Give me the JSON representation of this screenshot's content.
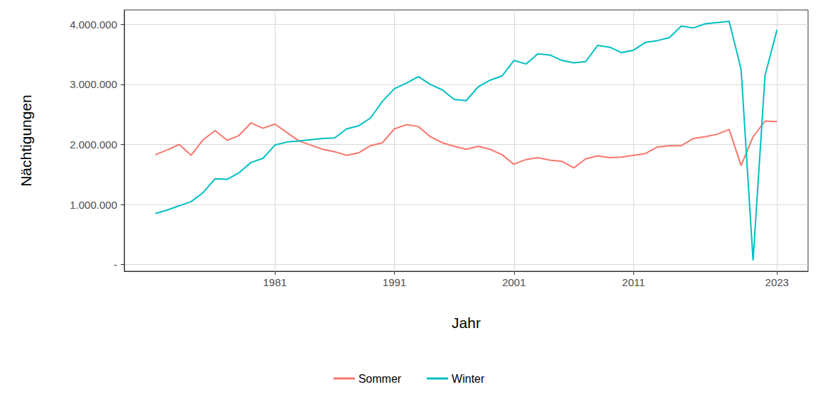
{
  "chart_data": {
    "type": "line",
    "x_label": "Jahr",
    "y_label": "Nächtigungen",
    "x": [
      1971,
      1972,
      1973,
      1974,
      1975,
      1976,
      1977,
      1978,
      1979,
      1980,
      1981,
      1982,
      1983,
      1984,
      1985,
      1986,
      1987,
      1988,
      1989,
      1990,
      1991,
      1992,
      1993,
      1994,
      1995,
      1996,
      1997,
      1998,
      1999,
      2000,
      2001,
      2002,
      2003,
      2004,
      2005,
      2006,
      2007,
      2008,
      2009,
      2010,
      2011,
      2012,
      2013,
      2014,
      2015,
      2016,
      2017,
      2018,
      2019,
      2020,
      2021,
      2022,
      2023
    ],
    "series": [
      {
        "name": "Sommer",
        "color": "#F8766D",
        "values": [
          1830000,
          1910000,
          2000000,
          1820000,
          2080000,
          2230000,
          2070000,
          2150000,
          2360000,
          2270000,
          2340000,
          2200000,
          2060000,
          1990000,
          1920000,
          1880000,
          1820000,
          1860000,
          1980000,
          2030000,
          2260000,
          2330000,
          2300000,
          2130000,
          2030000,
          1970000,
          1920000,
          1970000,
          1920000,
          1830000,
          1670000,
          1750000,
          1780000,
          1740000,
          1720000,
          1610000,
          1760000,
          1810000,
          1780000,
          1790000,
          1820000,
          1850000,
          1960000,
          1980000,
          1980000,
          2100000,
          2130000,
          2170000,
          2250000,
          1650000,
          2130000,
          2390000,
          2380000
        ]
      },
      {
        "name": "Winter",
        "color": "#00BFC4",
        "values": [
          850000,
          910000,
          980000,
          1050000,
          1200000,
          1430000,
          1420000,
          1530000,
          1700000,
          1770000,
          1990000,
          2040000,
          2060000,
          2080000,
          2100000,
          2110000,
          2260000,
          2310000,
          2440000,
          2720000,
          2930000,
          3020000,
          3130000,
          3000000,
          2910000,
          2750000,
          2730000,
          2960000,
          3070000,
          3140000,
          3400000,
          3340000,
          3510000,
          3490000,
          3400000,
          3360000,
          3380000,
          3650000,
          3620000,
          3530000,
          3570000,
          3700000,
          3730000,
          3780000,
          3970000,
          3940000,
          4010000,
          4030000,
          4050000,
          3250000,
          70000,
          3150000,
          3910000
        ]
      }
    ],
    "xlim": [
      1968.4,
      2025.6
    ],
    "xticks": [
      1981,
      1991,
      2001,
      2011,
      2023
    ],
    "ylim": [
      -110000,
      4240000
    ],
    "yticks": [
      {
        "value": 0,
        "label": "-"
      },
      {
        "value": 1000000,
        "label": "1.000.000"
      },
      {
        "value": 2000000,
        "label": "2.000.000"
      },
      {
        "value": 3000000,
        "label": "3.000.000"
      },
      {
        "value": 4000000,
        "label": "4.000.000"
      }
    ],
    "grid": true,
    "legend": "bottom"
  }
}
